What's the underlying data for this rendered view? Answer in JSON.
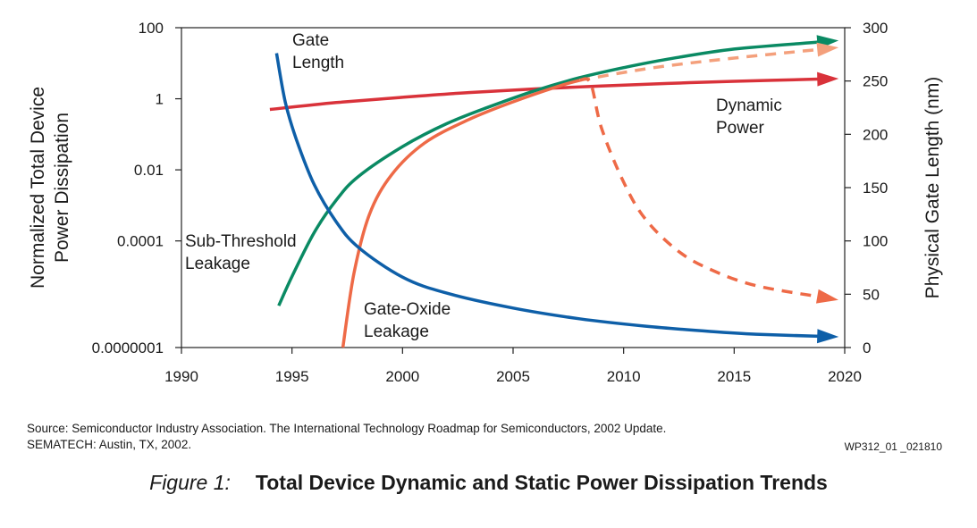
{
  "chart_data": {
    "type": "line",
    "title": "Total Device Dynamic and Static Power Dissipation Trends",
    "xlabel": "",
    "ylabel": "Normalized Total Device Power Dissipation",
    "y2label": "Physical Gate Length (nm)",
    "xlim": [
      1990,
      2020
    ],
    "ylim_log10": [
      -7,
      2
    ],
    "y2lim": [
      0,
      300
    ],
    "x_ticks": [
      "1990",
      "1995",
      "2000",
      "2005",
      "2010",
      "2015",
      "2020"
    ],
    "y_ticks": [
      "100",
      "1",
      "0.01",
      "0.0001",
      "0.0000001"
    ],
    "y2_ticks": [
      "300",
      "250",
      "200",
      "150",
      "100",
      "50",
      "0"
    ],
    "ylabel_lines": [
      "Normalized Total Device",
      "Power Dissipation"
    ],
    "series": [
      {
        "name": "Dynamic Power",
        "label_lines": [
          "Dynamic",
          "Power"
        ],
        "axis": "left",
        "color": "#d9323a",
        "dashed": false,
        "x": [
          1994,
          1997,
          2000,
          2003,
          2006,
          2009,
          2012,
          2015,
          2019
        ],
        "y": [
          0.5,
          0.78,
          1.1,
          1.5,
          1.9,
          2.3,
          2.7,
          3.1,
          3.6
        ]
      },
      {
        "name": "Sub-Threshold Leakage",
        "label_lines": [
          "Sub-Threshold",
          "Leakage"
        ],
        "axis": "left",
        "color": "#0a8a63",
        "dashed": false,
        "x": [
          1994.4,
          1995,
          1996,
          1997,
          1998,
          2000,
          2002,
          2004,
          2006,
          2008,
          2010,
          2012,
          2015,
          2019
        ],
        "y": [
          1.5e-06,
          1e-05,
          0.00017,
          0.0014,
          0.0065,
          0.045,
          0.2,
          0.62,
          1.7,
          3.9,
          7.5,
          13,
          25,
          40
        ]
      },
      {
        "name": "Gate-Oxide Leakage",
        "label_lines": [
          "Gate-Oxide",
          "Leakage"
        ],
        "axis": "left",
        "color": "#ee6a47",
        "dashed": false,
        "x": [
          1997.3,
          1997.8,
          1998.5,
          1999.5,
          2001,
          2003,
          2005,
          2007,
          2008
        ],
        "y": [
          1e-07,
          1.2e-05,
          0.00055,
          0.0072,
          0.057,
          0.26,
          0.82,
          2.2,
          3.3
        ]
      },
      {
        "name": "Gate-Oxide Leakage (projected, high-k)",
        "axis": "left",
        "color": "#f4a07c",
        "dashed": true,
        "x": [
          2008,
          2010,
          2012,
          2015,
          2019
        ],
        "y": [
          3.3,
          5.5,
          8.5,
          14,
          25
        ]
      },
      {
        "name": "Gate-Oxide Leakage (projected drop)",
        "axis": "left",
        "color": "#ee6a47",
        "dashed": true,
        "x": [
          2008,
          2008.5,
          2009,
          2010,
          2011,
          2012.5,
          2014,
          2016,
          2019
        ],
        "y": [
          3.3,
          2.8,
          0.15,
          0.0045,
          0.0004,
          5e-05,
          1.5e-05,
          5.5e-06,
          2.6e-06
        ]
      },
      {
        "name": "Gate Length",
        "label_lines": [
          "Gate",
          "Length"
        ],
        "axis": "right",
        "color": "#0e5fa8",
        "dashed": false,
        "x": [
          1994.3,
          1994.7,
          1995.2,
          1996,
          1997,
          1998,
          2000,
          2002,
          2005,
          2008,
          2011,
          2014,
          2016,
          2019
        ],
        "y": [
          276,
          230,
          195,
          153,
          118,
          94,
          66,
          51,
          37,
          27,
          20,
          15,
          12.5,
          10.5
        ]
      }
    ]
  },
  "source": {
    "line1": "Source: Semiconductor Industry Association. The International Technology Roadmap for Semiconductors, 2002 Update.",
    "line2": "SEMATECH: Austin, TX, 2002."
  },
  "figure_id": "WP312_01 _021810",
  "caption": {
    "number": "Figure 1:",
    "text": "Total Device Dynamic and Static Power Dissipation Trends"
  }
}
